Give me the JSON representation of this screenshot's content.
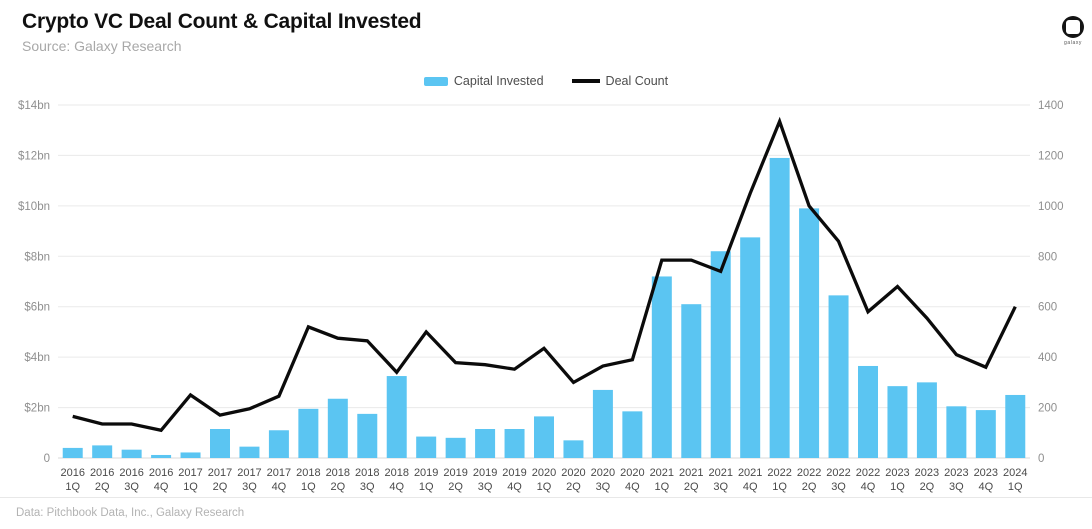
{
  "header": {
    "title": "Crypto VC Deal Count & Capital Invested",
    "source": "Source: Galaxy Research",
    "logo_word": "galaxy"
  },
  "legend": [
    {
      "label": "Capital Invested",
      "type": "bar",
      "color": "#5bc5f2"
    },
    {
      "label": "Deal Count",
      "type": "line",
      "color": "#0b0b0b"
    }
  ],
  "footer": {
    "credit": "Data: Pitchbook Data, Inc., Galaxy Research"
  },
  "colors": {
    "bar": "#5bc5f2",
    "line": "#0b0b0b",
    "grid": "#eaeaea",
    "baseline": "#d9d9d9"
  },
  "chart_data": {
    "type": "bar",
    "title": "Crypto VC Deal Count & Capital Invested",
    "categories": [
      "2016 1Q",
      "2016 2Q",
      "2016 3Q",
      "2016 4Q",
      "2017 1Q",
      "2017 2Q",
      "2017 3Q",
      "2017 4Q",
      "2018 1Q",
      "2018 2Q",
      "2018 3Q",
      "2018 4Q",
      "2019 1Q",
      "2019 2Q",
      "2019 3Q",
      "2019 4Q",
      "2020 1Q",
      "2020 2Q",
      "2020 3Q",
      "2020 4Q",
      "2021 1Q",
      "2021 2Q",
      "2021 3Q",
      "2021 4Q",
      "2022 1Q",
      "2022 2Q",
      "2022 3Q",
      "2022 4Q",
      "2023 1Q",
      "2023 2Q",
      "2023 3Q",
      "2023 4Q",
      "2024 1Q"
    ],
    "series": [
      {
        "name": "Capital Invested",
        "type": "bar",
        "axis": "left",
        "unit": "$bn",
        "values": [
          0.4,
          0.5,
          0.33,
          0.12,
          0.22,
          1.15,
          0.45,
          1.1,
          1.95,
          2.35,
          1.75,
          3.25,
          0.85,
          0.8,
          1.15,
          1.15,
          1.65,
          0.7,
          2.7,
          1.85,
          7.2,
          6.1,
          8.2,
          8.75,
          11.9,
          9.9,
          6.45,
          3.65,
          2.85,
          3.0,
          2.05,
          1.9,
          2.5
        ]
      },
      {
        "name": "Deal Count",
        "type": "line",
        "axis": "right",
        "unit": "deals",
        "values": [
          165,
          135,
          135,
          110,
          250,
          170,
          195,
          245,
          520,
          475,
          465,
          340,
          500,
          378,
          370,
          352,
          435,
          300,
          365,
          390,
          785,
          785,
          740,
          1050,
          1335,
          1000,
          860,
          580,
          680,
          555,
          410,
          360,
          600
        ]
      }
    ],
    "left_axis": {
      "min": 0,
      "max": 14,
      "ticks": [
        {
          "value": 0,
          "label": "0"
        },
        {
          "value": 2,
          "label": "$2bn"
        },
        {
          "value": 4,
          "label": "$4bn"
        },
        {
          "value": 6,
          "label": "$6bn"
        },
        {
          "value": 8,
          "label": "$8bn"
        },
        {
          "value": 10,
          "label": "$10bn"
        },
        {
          "value": 12,
          "label": "$12bn"
        },
        {
          "value": 14,
          "label": "$14bn"
        }
      ]
    },
    "right_axis": {
      "min": 0,
      "max": 1400,
      "ticks": [
        {
          "value": 0,
          "label": "0"
        },
        {
          "value": 200,
          "label": "200"
        },
        {
          "value": 400,
          "label": "400"
        },
        {
          "value": 600,
          "label": "600"
        },
        {
          "value": 800,
          "label": "800"
        },
        {
          "value": 1000,
          "label": "1000"
        },
        {
          "value": 1200,
          "label": "1200"
        },
        {
          "value": 1400,
          "label": "1400"
        }
      ]
    },
    "grid": "horizontal",
    "legend_position": "top-center"
  }
}
